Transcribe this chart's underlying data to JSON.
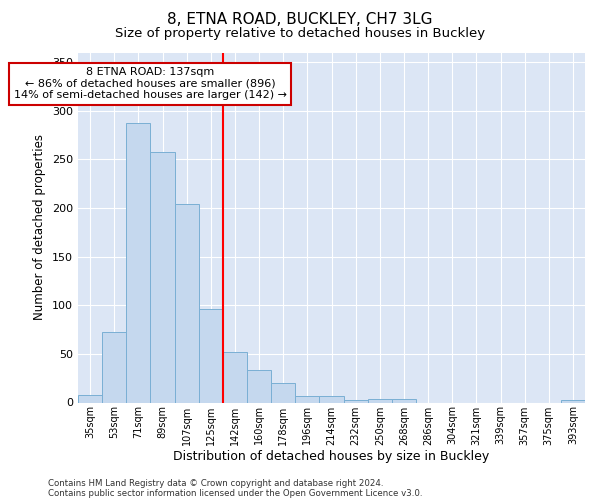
{
  "title": "8, ETNA ROAD, BUCKLEY, CH7 3LG",
  "subtitle": "Size of property relative to detached houses in Buckley",
  "xlabel": "Distribution of detached houses by size in Buckley",
  "ylabel": "Number of detached properties",
  "categories": [
    "35sqm",
    "53sqm",
    "71sqm",
    "89sqm",
    "107sqm",
    "125sqm",
    "142sqm",
    "160sqm",
    "178sqm",
    "196sqm",
    "214sqm",
    "232sqm",
    "250sqm",
    "268sqm",
    "286sqm",
    "304sqm",
    "321sqm",
    "339sqm",
    "357sqm",
    "375sqm",
    "393sqm"
  ],
  "values": [
    8,
    73,
    287,
    258,
    204,
    96,
    52,
    33,
    20,
    7,
    7,
    3,
    4,
    4,
    0,
    0,
    0,
    0,
    0,
    0,
    3
  ],
  "bar_color": "#c5d8ee",
  "bar_edge_color": "#7aafd4",
  "red_line_index": 6,
  "annotation_text": "8 ETNA ROAD: 137sqm\n← 86% of detached houses are smaller (896)\n14% of semi-detached houses are larger (142) →",
  "annotation_box_color": "#ffffff",
  "annotation_box_edge_color": "#cc0000",
  "ylim": [
    0,
    360
  ],
  "yticks": [
    0,
    50,
    100,
    150,
    200,
    250,
    300,
    350
  ],
  "background_color": "#dce6f5",
  "footer_line1": "Contains HM Land Registry data © Crown copyright and database right 2024.",
  "footer_line2": "Contains public sector information licensed under the Open Government Licence v3.0.",
  "title_fontsize": 11,
  "subtitle_fontsize": 9.5,
  "xlabel_fontsize": 9,
  "ylabel_fontsize": 8.5,
  "annotation_fontsize": 8
}
